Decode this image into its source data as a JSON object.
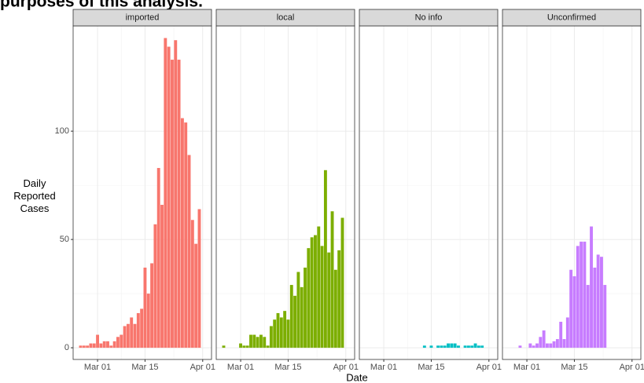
{
  "chart_data": {
    "type": "bar",
    "title": "purposes of this analysis.",
    "xlabel": "Date",
    "ylabel": "Daily\nReported\nCases",
    "categories": [
      null,
      null,
      null,
      null,
      null,
      null,
      null,
      "Mar 01",
      null,
      null,
      null,
      null,
      null,
      null,
      null,
      null,
      null,
      null,
      null,
      null,
      null,
      "Mar 15",
      null,
      null,
      null,
      null,
      null,
      null,
      null,
      null,
      null,
      null,
      null,
      null,
      null,
      null,
      null,
      null,
      "Apr 01"
    ],
    "ylim": [
      -5.4,
      148.6
    ],
    "yticks": [
      0,
      50,
      100
    ],
    "grid": true,
    "series": [
      {
        "name": "imported",
        "color": "#F8766D",
        "values": [
          null,
          null,
          1,
          1,
          1,
          2,
          2,
          6,
          2,
          3,
          3,
          1,
          3,
          5,
          6,
          10,
          11,
          14,
          11,
          16,
          18,
          37,
          25,
          39,
          57,
          83,
          66,
          143,
          139,
          133,
          142,
          133,
          106,
          104,
          89,
          59,
          48,
          64,
          null
        ]
      },
      {
        "name": "local",
        "color": "#7CAE00",
        "values": [
          null,
          null,
          1,
          null,
          null,
          null,
          null,
          2,
          1,
          1,
          6,
          6,
          5,
          6,
          5,
          1,
          10,
          13,
          16,
          14,
          17,
          13,
          29,
          24,
          35,
          28,
          37,
          46,
          51,
          52,
          56,
          47,
          82,
          44,
          63,
          36,
          45,
          60,
          null
        ]
      },
      {
        "name": "No info",
        "color": "#00BFC4",
        "values": [
          null,
          null,
          null,
          null,
          null,
          null,
          null,
          null,
          null,
          null,
          null,
          null,
          null,
          null,
          null,
          null,
          null,
          null,
          null,
          1,
          null,
          1,
          null,
          1,
          1,
          1,
          2,
          2,
          2,
          1,
          null,
          1,
          1,
          1,
          2,
          1,
          1,
          null,
          null
        ]
      },
      {
        "name": "Unconfirmed",
        "color": "#C77CFF",
        "values": [
          null,
          null,
          null,
          null,
          null,
          1,
          null,
          null,
          2,
          1,
          2,
          5,
          8,
          2,
          2,
          3,
          4,
          12,
          4,
          14,
          36,
          33,
          47,
          49,
          49,
          29,
          56,
          37,
          43,
          42,
          29,
          null,
          null,
          null,
          null,
          null,
          null,
          null,
          null
        ]
      }
    ]
  }
}
